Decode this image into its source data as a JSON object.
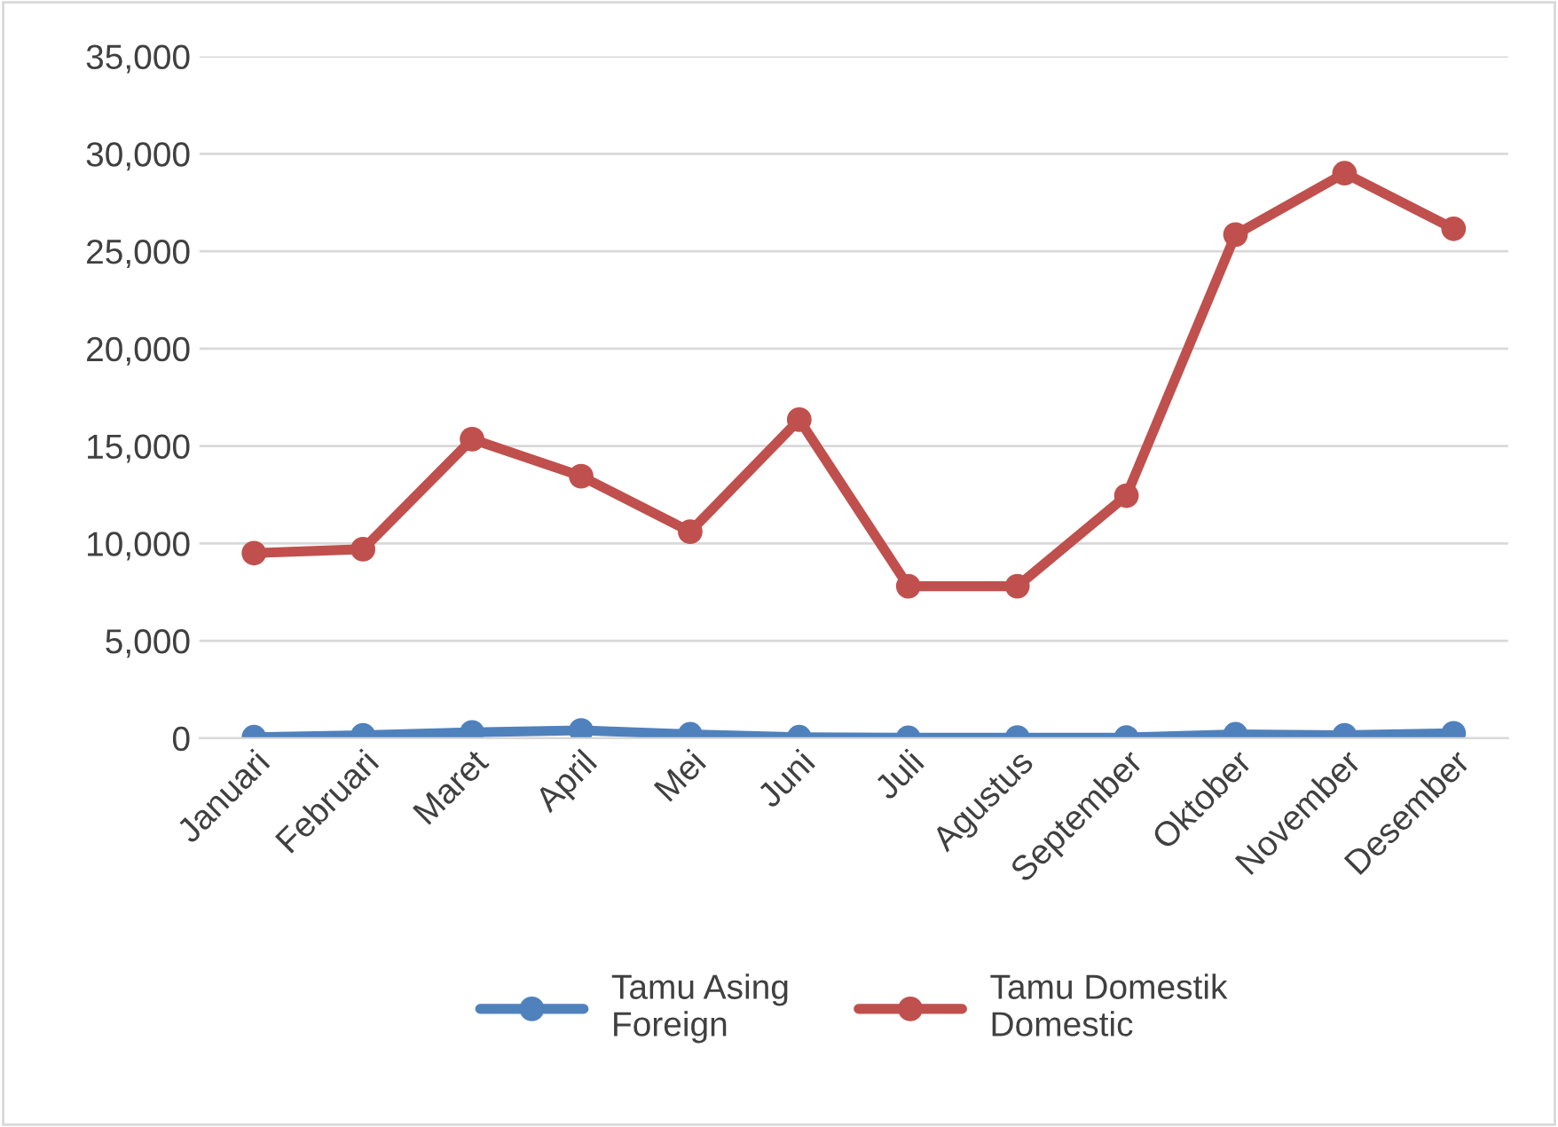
{
  "chart_data": {
    "type": "line",
    "categories": [
      "Januari",
      "Februari",
      "Maret",
      "April",
      "Mei",
      "Juni",
      "Juli",
      "Agustus",
      "September",
      "Oktober",
      "November",
      "Desember"
    ],
    "series": [
      {
        "name": "Tamu Asing\nForeign",
        "color": "#4f81bd",
        "values": [
          50,
          150,
          300,
          400,
          200,
          50,
          20,
          30,
          30,
          200,
          150,
          250
        ]
      },
      {
        "name": "Tamu Domestik\nDomestic",
        "color": "#c0504d",
        "values": [
          9500,
          9700,
          15350,
          13450,
          10600,
          16350,
          7800,
          7800,
          12450,
          25850,
          29000,
          26150
        ]
      }
    ],
    "ylim": [
      0,
      35000
    ],
    "yticks": [
      {
        "value": 0,
        "label": "0"
      },
      {
        "value": 5000,
        "label": "5,000"
      },
      {
        "value": 10000,
        "label": "10,000"
      },
      {
        "value": 15000,
        "label": "15,000"
      },
      {
        "value": 20000,
        "label": "20,000"
      },
      {
        "value": 25000,
        "label": "25,000"
      },
      {
        "value": 30000,
        "label": "30,000"
      },
      {
        "value": 35000,
        "label": "35,000"
      }
    ],
    "grid": "y",
    "legend": "bottom",
    "marker": "circle",
    "line_style": "solid"
  }
}
